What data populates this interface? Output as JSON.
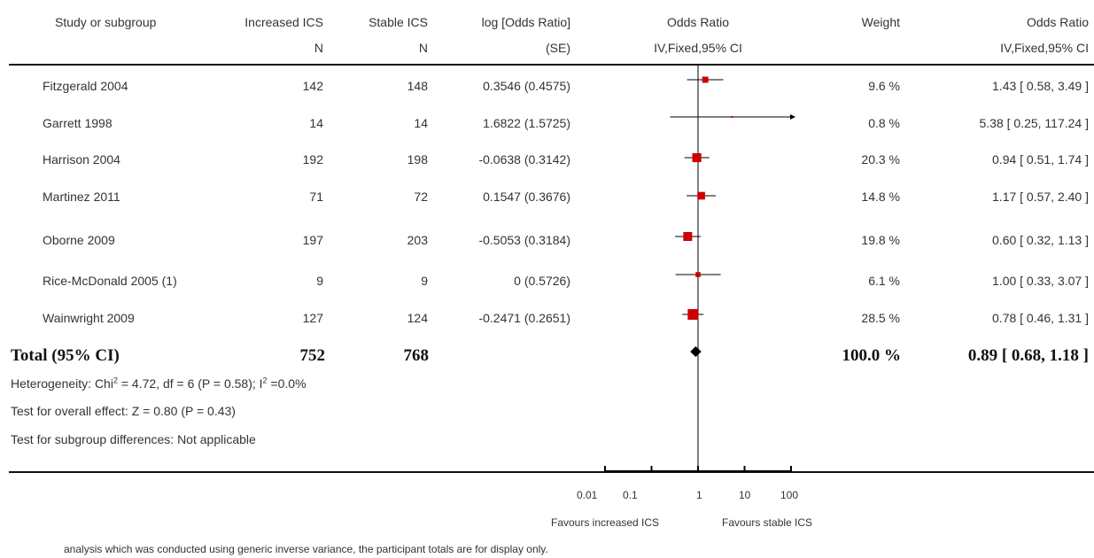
{
  "headers": {
    "study": "Study or subgroup",
    "increased": "Increased ICS",
    "increased_sub": "N",
    "stable": "Stable ICS",
    "stable_sub": "N",
    "logor": "log [Odds Ratio]",
    "logor_sub": "(SE)",
    "or_plot": "Odds Ratio",
    "or_plot_sub": "IV,Fixed,95% CI",
    "weight": "Weight",
    "or_text": "Odds Ratio",
    "or_text_sub": "IV,Fixed,95% CI"
  },
  "studies": [
    {
      "name": "Fitzgerald 2004",
      "n_inc": "142",
      "n_stable": "148",
      "logor": "0.3546 (0.4575)",
      "weight": "9.6 %",
      "ci_text": "1.43 [ 0.58, 3.49 ]"
    },
    {
      "name": "Garrett 1998",
      "n_inc": "14",
      "n_stable": "14",
      "logor": "1.6822 (1.5725)",
      "weight": "0.8 %",
      "ci_text": "5.38 [ 0.25, 117.24 ]"
    },
    {
      "name": "Harrison 2004",
      "n_inc": "192",
      "n_stable": "198",
      "logor": "-0.0638 (0.3142)",
      "weight": "20.3 %",
      "ci_text": "0.94 [ 0.51, 1.74 ]"
    },
    {
      "name": "Martinez 2011",
      "n_inc": "71",
      "n_stable": "72",
      "logor": "0.1547 (0.3676)",
      "weight": "14.8 %",
      "ci_text": "1.17 [ 0.57, 2.40 ]"
    },
    {
      "name": "Oborne 2009",
      "n_inc": "197",
      "n_stable": "203",
      "logor": "-0.5053 (0.3184)",
      "weight": "19.8 %",
      "ci_text": "0.60 [ 0.32, 1.13 ]"
    },
    {
      "name": "Rice-McDonald 2005 (1)",
      "n_inc": "9",
      "n_stable": "9",
      "logor": "0 (0.5726)",
      "weight": "6.1 %",
      "ci_text": "1.00 [ 0.33, 3.07 ]"
    },
    {
      "name": "Wainwright 2009",
      "n_inc": "127",
      "n_stable": "124",
      "logor": "-0.2471 (0.2651)",
      "weight": "28.5 %",
      "ci_text": "0.78 [ 0.46, 1.31 ]"
    }
  ],
  "total": {
    "label": "Total (95% CI)",
    "n_inc": "752",
    "n_stable": "768",
    "weight": "100.0 %",
    "ci_text": "0.89 [ 0.68, 1.18 ]"
  },
  "footer": {
    "heterogeneity_a": "Heterogeneity: Chi",
    "heterogeneity_sup1": "2",
    "heterogeneity_b": " = 4.72, df = 6 (P = 0.58); I",
    "heterogeneity_sup2": "2",
    "heterogeneity_c": " =0.0%",
    "overall": "Test for overall effect: Z = 0.80 (P = 0.43)",
    "subgroup": "Test for subgroup differences: Not applicable"
  },
  "axis": {
    "favours_left": "Favours increased ICS",
    "favours_right": "Favours stable ICS"
  },
  "footnote": "analysis which was conducted using generic inverse variance, the participant totals are for display only.",
  "colors": {
    "marker": "#cc0000",
    "diamond": "#000000",
    "lines": "#000000"
  },
  "chart_data": {
    "type": "forest",
    "scale": "log",
    "x_ticks": [
      "0.01",
      "0.1",
      "1",
      "10",
      "100"
    ],
    "x_tick_values": [
      0.01,
      0.1,
      1,
      10,
      100
    ],
    "xlim": [
      0.01,
      100
    ],
    "reference_line": 1,
    "studies": [
      {
        "name": "Fitzgerald 2004",
        "or": 1.43,
        "lower": 0.58,
        "upper": 3.49,
        "weight": 9.6
      },
      {
        "name": "Garrett 1998",
        "or": 5.38,
        "lower": 0.25,
        "upper": 117.24,
        "weight": 0.8
      },
      {
        "name": "Harrison 2004",
        "or": 0.94,
        "lower": 0.51,
        "upper": 1.74,
        "weight": 20.3
      },
      {
        "name": "Martinez 2011",
        "or": 1.17,
        "lower": 0.57,
        "upper": 2.4,
        "weight": 14.8
      },
      {
        "name": "Oborne 2009",
        "or": 0.6,
        "lower": 0.32,
        "upper": 1.13,
        "weight": 19.8
      },
      {
        "name": "Rice-McDonald 2005 (1)",
        "or": 1.0,
        "lower": 0.33,
        "upper": 3.07,
        "weight": 6.1
      },
      {
        "name": "Wainwright 2009",
        "or": 0.78,
        "lower": 0.46,
        "upper": 1.31,
        "weight": 28.5
      }
    ],
    "total": {
      "or": 0.89,
      "lower": 0.68,
      "upper": 1.18
    }
  }
}
